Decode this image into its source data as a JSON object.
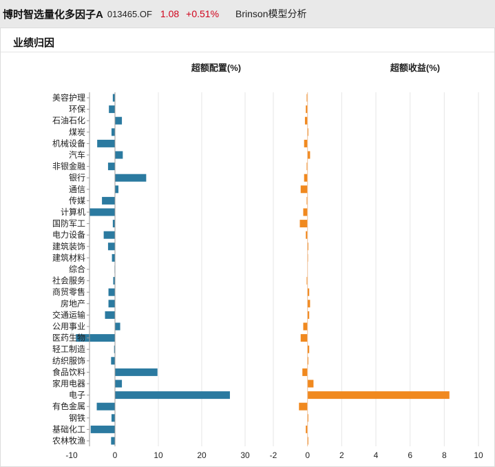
{
  "header": {
    "fund_name": "博时智选量化多因子A",
    "fund_code": "013465.OF",
    "price": "1.08",
    "change": "+0.51%",
    "analysis_label": "Brinson模型分析"
  },
  "panel": {
    "title": "业绩归因"
  },
  "colors": {
    "allocation": "#2b7aa0",
    "return": "#f0891f",
    "grid": "#e6e6e6",
    "axis": "#999999"
  },
  "chart_data": [
    {
      "type": "bar",
      "orientation": "horizontal",
      "title": "超额配置(%)",
      "xlim": [
        -10,
        30
      ],
      "xticks": [
        "-10",
        "0",
        "10",
        "20",
        "30"
      ],
      "grid": true,
      "categories": [
        "美容护理",
        "环保",
        "石油石化",
        "煤炭",
        "机械设备",
        "汽车",
        "非银金融",
        "银行",
        "通信",
        "传媒",
        "计算机",
        "国防军工",
        "电力设备",
        "建筑装饰",
        "建筑材料",
        "综合",
        "社会服务",
        "商贸零售",
        "房地产",
        "交通运输",
        "公用事业",
        "医药生物",
        "轻工制造",
        "纺织服饰",
        "食品饮料",
        "家用电器",
        "电子",
        "有色金属",
        "钢铁",
        "基础化工",
        "农林牧渔"
      ],
      "values": [
        -0.5,
        -1.4,
        1.6,
        -0.8,
        -4.1,
        1.8,
        -1.6,
        7.2,
        0.8,
        -3.0,
        -5.8,
        -0.5,
        -2.6,
        -1.6,
        -0.7,
        -0.1,
        -0.4,
        -1.5,
        -1.5,
        -2.3,
        1.2,
        -9.0,
        -0.2,
        -0.9,
        9.8,
        1.6,
        26.5,
        -4.2,
        -0.8,
        -5.6,
        -0.9
      ]
    },
    {
      "type": "bar",
      "orientation": "horizontal",
      "title": "超额收益(%)",
      "xlim": [
        -2,
        10
      ],
      "xticks": [
        "-2",
        "0",
        "2",
        "4",
        "6",
        "8",
        "10"
      ],
      "grid": true,
      "categories": [
        "美容护理",
        "环保",
        "石油石化",
        "煤炭",
        "机械设备",
        "汽车",
        "非银金融",
        "银行",
        "通信",
        "传媒",
        "计算机",
        "国防军工",
        "电力设备",
        "建筑装饰",
        "建筑材料",
        "综合",
        "社会服务",
        "商贸零售",
        "房地产",
        "交通运输",
        "公用事业",
        "医药生物",
        "轻工制造",
        "纺织服饰",
        "食品饮料",
        "家用电器",
        "电子",
        "有色金属",
        "钢铁",
        "基础化工",
        "农林牧渔"
      ],
      "values": [
        -0.05,
        -0.1,
        -0.15,
        0.05,
        -0.2,
        0.15,
        -0.05,
        -0.2,
        -0.4,
        -0.05,
        -0.25,
        -0.45,
        -0.1,
        0.05,
        0.03,
        0.0,
        -0.05,
        0.1,
        0.15,
        0.1,
        -0.25,
        -0.4,
        0.1,
        0.05,
        -0.3,
        0.35,
        8.3,
        -0.5,
        0.05,
        -0.1,
        0.05
      ]
    }
  ]
}
